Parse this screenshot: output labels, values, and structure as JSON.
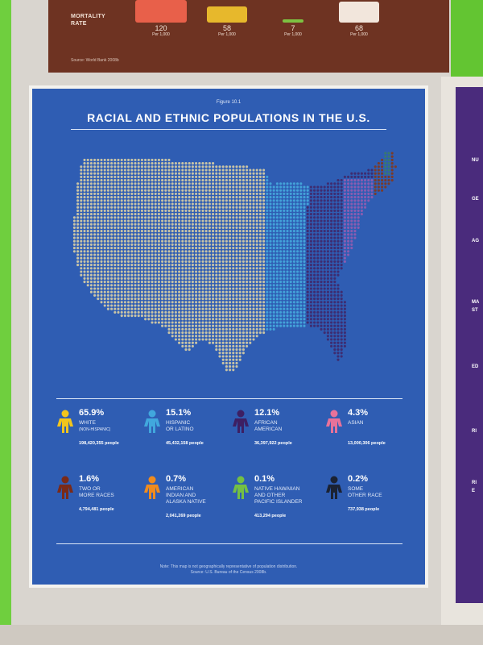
{
  "mortality": {
    "label_line1": "MORTALITY",
    "label_line2": "RATE",
    "columns": [
      {
        "value": "120",
        "unit": "Per 1,000",
        "color": "#e8604a"
      },
      {
        "value": "58",
        "unit": "Per 1,000",
        "color": "#e7b82c"
      },
      {
        "value": "7",
        "unit": "Per 1,000",
        "color": "#7dc242"
      },
      {
        "value": "68",
        "unit": "Per 1,000",
        "color": "#f2e6dc"
      }
    ],
    "source": "Source: World Bank 2008b"
  },
  "right_panel": {
    "labels": [
      "NU",
      "GE",
      "AG",
      "MA",
      "ST",
      "ED",
      "RI",
      "RI",
      "E"
    ]
  },
  "poster": {
    "figure_label": "Figure 10.1",
    "title": "RACIAL AND ETHNIC POPULATIONS IN THE U.S.",
    "note_line1": "Note: This map is not geographically representative of population distribution.",
    "note_line2": "Source: U.S. Bureau of the Census 2008b."
  },
  "legend": [
    {
      "pct": "65.9%",
      "label_line1": "WHITE",
      "label_line2": "(NON-HISPANIC)",
      "label_line3": "",
      "count": "198,420,355 people",
      "color": "#f2c51d"
    },
    {
      "pct": "15.1%",
      "label_line1": "HISPANIC",
      "label_line2": "OR LATINO",
      "label_line3": "",
      "count": "45,432,158 people",
      "color": "#41a7dd"
    },
    {
      "pct": "12.1%",
      "label_line1": "AFRICAN",
      "label_line2": "AMERICAN",
      "label_line3": "",
      "count": "36,397,922 people",
      "color": "#3d1f63"
    },
    {
      "pct": "4.3%",
      "label_line1": "ASIAN",
      "label_line2": "",
      "label_line3": "",
      "count": "13,000,306 people",
      "color": "#e8729a"
    },
    {
      "pct": "1.6%",
      "label_line1": "TWO OR",
      "label_line2": "MORE RACES",
      "label_line3": "",
      "count": "4,794,481 people",
      "color": "#7a2a18"
    },
    {
      "pct": "0.7%",
      "label_line1": "AMERICAN",
      "label_line2": "INDIAN AND",
      "label_line3": "ALASKA NATIVE",
      "count": "2,041,269 people",
      "color": "#f08b1e"
    },
    {
      "pct": "0.1%",
      "label_line1": "NATIVE HAWAIIAN",
      "label_line2": "AND OTHER",
      "label_line3": "PACIFIC ISLANDER",
      "count": "413,294 people",
      "color": "#74c043"
    },
    {
      "pct": "0.2%",
      "label_line1": "SOME",
      "label_line2": "OTHER RACE",
      "label_line3": "",
      "count": "737,938 people",
      "color": "#1b2233"
    }
  ],
  "map_colors": {
    "white": "#c9c4a6",
    "hispanic": "#43a2d9",
    "african_american": "#3e2c70",
    "asian": "#8a5cb0",
    "two_or_more": "#7a3b2a",
    "other": "#3a7a6b"
  }
}
